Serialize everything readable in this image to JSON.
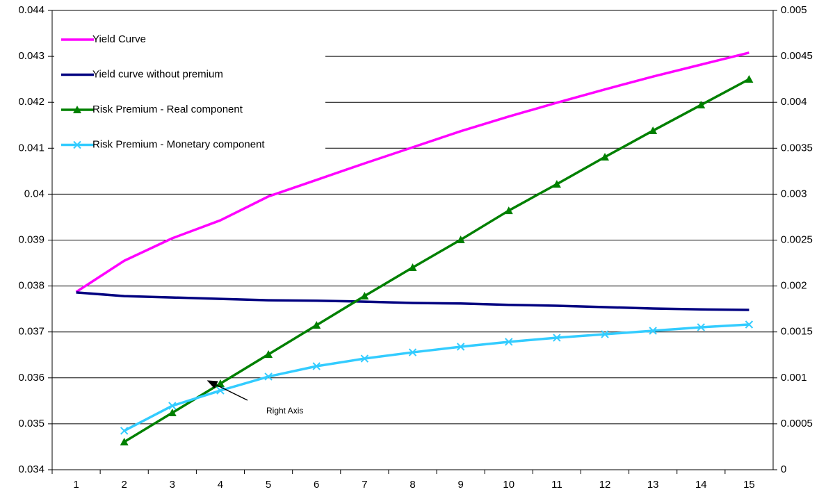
{
  "chart_data": {
    "type": "line",
    "categories": [
      1,
      2,
      3,
      4,
      5,
      6,
      7,
      8,
      9,
      10,
      11,
      12,
      13,
      14,
      15
    ],
    "series": [
      {
        "name": "Yield Curve",
        "color": "#ff00ff",
        "marker": "none",
        "values": [
          0.03787,
          0.03855,
          0.03904,
          0.03943,
          0.03995,
          0.04031,
          0.04067,
          0.04102,
          0.04137,
          0.04169,
          0.04199,
          0.04228,
          0.04256,
          0.04282,
          0.04308
        ]
      },
      {
        "name": "Yield curve without premium",
        "color": "#000080",
        "marker": "none",
        "values": [
          0.03786,
          0.03778,
          0.03775,
          0.03772,
          0.03769,
          0.03768,
          0.03766,
          0.03763,
          0.03762,
          0.03759,
          0.03757,
          0.03754,
          0.03751,
          0.03749,
          0.03748
        ]
      },
      {
        "name": "Risk Premium - Real component",
        "color": "#008000",
        "marker": "triangle",
        "axis": "y2",
        "values": [
          null,
          0.000303,
          0.00062,
          0.000938,
          0.001256,
          0.001573,
          0.001891,
          0.002201,
          0.002504,
          0.002821,
          0.003109,
          0.003404,
          0.003691,
          0.003971,
          0.004251
        ]
      },
      {
        "name": "Risk Premium - Monetary component",
        "color": "#33ccff",
        "marker": "x",
        "axis": "y2",
        "values": [
          null,
          0.000424,
          0.000696,
          0.000862,
          0.001014,
          0.001127,
          0.00121,
          0.001278,
          0.001339,
          0.001392,
          0.001437,
          0.001475,
          0.001513,
          0.001551,
          0.001581
        ]
      }
    ],
    "ylim": [
      0.034,
      0.044
    ],
    "yticks": [
      0.034,
      0.035,
      0.036,
      0.037,
      0.038,
      0.039,
      0.04,
      0.041,
      0.042,
      0.043,
      0.044
    ],
    "y2lim": [
      0,
      0.005
    ],
    "y2ticks": [
      0,
      0.0005,
      0.001,
      0.0015,
      0.002,
      0.0025,
      0.003,
      0.0035,
      0.004,
      0.0045,
      0.005
    ],
    "grid": true,
    "legend": "top-left",
    "annotation": "Right Axis"
  }
}
